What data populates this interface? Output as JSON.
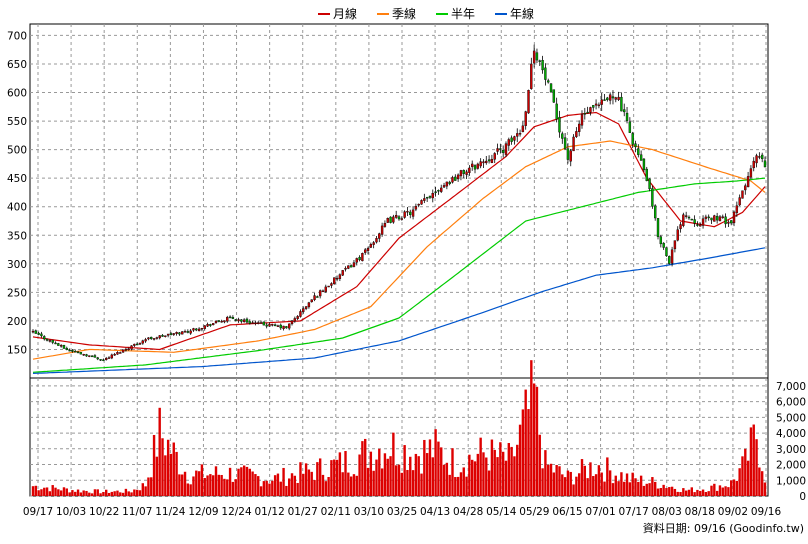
{
  "legend": [
    {
      "key": "ma20",
      "label": "月線",
      "color": "#cc0000"
    },
    {
      "key": "ma60",
      "label": "季線",
      "color": "#ff7f0e"
    },
    {
      "key": "ma120",
      "label": "半年",
      "color": "#00cc00"
    },
    {
      "key": "ma240",
      "label": "年線",
      "color": "#0055cc"
    }
  ],
  "footer": {
    "text": "資料日期: 09/16 (Goodinfo.tw)"
  },
  "chart_data": [
    {
      "type": "candlestick",
      "ylim": [
        100,
        720
      ],
      "y_ticks": [
        150,
        200,
        250,
        300,
        350,
        400,
        450,
        500,
        550,
        600,
        650,
        700
      ],
      "x_ticks": [
        "09/17",
        "10/03",
        "10/22",
        "11/07",
        "11/24",
        "12/09",
        "12/24",
        "01/12",
        "01/27",
        "02/11",
        "03/10",
        "03/25",
        "04/13",
        "04/28",
        "05/14",
        "05/29",
        "06/15",
        "07/01",
        "07/17",
        "08/03",
        "08/18",
        "09/02",
        "09/16"
      ],
      "grid": true,
      "legend_position": "top-center",
      "colors": {
        "up": "#cc0000",
        "down": "#00aa00"
      },
      "close_keypoints": [
        [
          0,
          180
        ],
        [
          12,
          150
        ],
        [
          25,
          132
        ],
        [
          40,
          168
        ],
        [
          55,
          182
        ],
        [
          70,
          205
        ],
        [
          80,
          195
        ],
        [
          90,
          188
        ],
        [
          100,
          242
        ],
        [
          108,
          276
        ],
        [
          118,
          320
        ],
        [
          126,
          375
        ],
        [
          135,
          392
        ],
        [
          143,
          430
        ],
        [
          152,
          458
        ],
        [
          160,
          480
        ],
        [
          168,
          505
        ],
        [
          174,
          540
        ],
        [
          178,
          680
        ],
        [
          183,
          610
        ],
        [
          190,
          485
        ],
        [
          195,
          560
        ],
        [
          200,
          572
        ],
        [
          207,
          600
        ],
        [
          212,
          530
        ],
        [
          218,
          450
        ],
        [
          222,
          350
        ],
        [
          226,
          305
        ],
        [
          231,
          390
        ],
        [
          236,
          372
        ],
        [
          242,
          382
        ],
        [
          248,
          372
        ],
        [
          253,
          440
        ],
        [
          257,
          488
        ],
        [
          259,
          478
        ],
        [
          260,
          470
        ]
      ],
      "moving_averages": {
        "ma20": [
          [
            0,
            172
          ],
          [
            20,
            158
          ],
          [
            45,
            150
          ],
          [
            70,
            193
          ],
          [
            95,
            200
          ],
          [
            115,
            260
          ],
          [
            130,
            345
          ],
          [
            150,
            420
          ],
          [
            168,
            488
          ],
          [
            178,
            540
          ],
          [
            190,
            560
          ],
          [
            200,
            565
          ],
          [
            208,
            545
          ],
          [
            218,
            450
          ],
          [
            230,
            375
          ],
          [
            242,
            365
          ],
          [
            252,
            390
          ],
          [
            260,
            435
          ]
        ],
        "ma60": [
          [
            0,
            133
          ],
          [
            20,
            150
          ],
          [
            50,
            145
          ],
          [
            80,
            165
          ],
          [
            100,
            185
          ],
          [
            120,
            225
          ],
          [
            140,
            330
          ],
          [
            160,
            415
          ],
          [
            175,
            470
          ],
          [
            190,
            505
          ],
          [
            205,
            515
          ],
          [
            220,
            500
          ],
          [
            240,
            468
          ],
          [
            255,
            445
          ],
          [
            260,
            425
          ]
        ],
        "ma120": [
          [
            0,
            110
          ],
          [
            40,
            123
          ],
          [
            80,
            148
          ],
          [
            110,
            170
          ],
          [
            130,
            205
          ],
          [
            150,
            280
          ],
          [
            175,
            375
          ],
          [
            195,
            400
          ],
          [
            215,
            425
          ],
          [
            235,
            440
          ],
          [
            250,
            445
          ],
          [
            260,
            450
          ]
        ],
        "ma240": [
          [
            0,
            108
          ],
          [
            60,
            120
          ],
          [
            100,
            135
          ],
          [
            130,
            165
          ],
          [
            160,
            215
          ],
          [
            180,
            250
          ],
          [
            200,
            280
          ],
          [
            220,
            293
          ],
          [
            240,
            310
          ],
          [
            260,
            328
          ]
        ]
      }
    },
    {
      "type": "bar",
      "ylim": [
        0,
        7500
      ],
      "y_ticks": [
        0,
        1000,
        2000,
        3000,
        4000,
        5000,
        6000,
        7000
      ],
      "x_ticks": [
        "09/17",
        "10/03",
        "10/22",
        "11/07",
        "11/24",
        "12/09",
        "12/24",
        "01/12",
        "01/27",
        "02/11",
        "03/10",
        "03/25",
        "04/13",
        "04/28",
        "05/14",
        "05/29",
        "06/15",
        "07/01",
        "07/17",
        "08/03",
        "08/18",
        "09/02",
        "09/16"
      ],
      "color": "#dd0000",
      "volume_keypoints": [
        [
          0,
          700
        ],
        [
          15,
          400
        ],
        [
          25,
          300
        ],
        [
          35,
          350
        ],
        [
          40,
          800
        ],
        [
          45,
          4500
        ],
        [
          55,
          1500
        ],
        [
          70,
          1600
        ],
        [
          85,
          1200
        ],
        [
          100,
          1800
        ],
        [
          110,
          2300
        ],
        [
          118,
          3000
        ],
        [
          126,
          3600
        ],
        [
          135,
          3000
        ],
        [
          143,
          3300
        ],
        [
          150,
          2300
        ],
        [
          160,
          3000
        ],
        [
          170,
          2500
        ],
        [
          178,
          7000
        ],
        [
          182,
          2200
        ],
        [
          190,
          1300
        ],
        [
          200,
          2200
        ],
        [
          212,
          1200
        ],
        [
          222,
          900
        ],
        [
          232,
          400
        ],
        [
          240,
          550
        ],
        [
          248,
          900
        ],
        [
          253,
          2300
        ],
        [
          257,
          4400
        ],
        [
          260,
          1500
        ]
      ]
    }
  ]
}
